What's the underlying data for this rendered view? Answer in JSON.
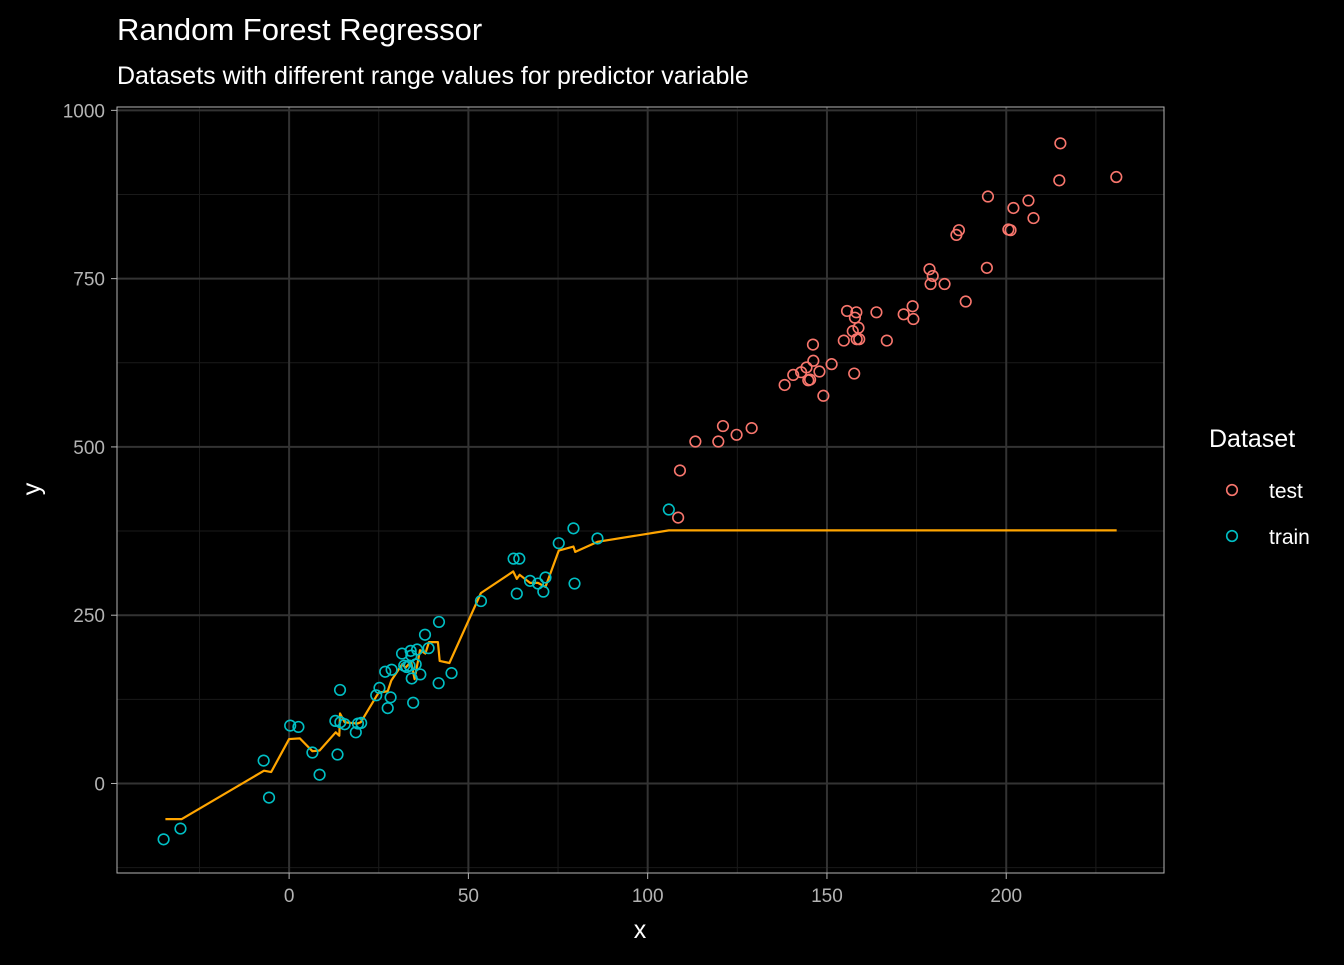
{
  "chart_data": {
    "type": "scatter",
    "title": "Random Forest Regressor",
    "subtitle": "Datasets with different range values for predictor variable",
    "xlabel": "x",
    "ylabel": "y",
    "xlim": [
      -48,
      244
    ],
    "ylim": [
      -133,
      1005
    ],
    "x_ticks": [
      0,
      50,
      100,
      150,
      200
    ],
    "y_ticks": [
      0,
      250,
      500,
      750,
      1000
    ],
    "x_minor_ticks": [
      -25,
      25,
      75,
      125,
      175,
      225
    ],
    "y_minor_ticks": [
      -125,
      125,
      375,
      625,
      875
    ],
    "grid": true,
    "legend_title": "Dataset",
    "legend_position": "right",
    "colors": {
      "test": "#F8766D",
      "train": "#00BFC4",
      "prediction": "#FFA500",
      "background": "#000000",
      "grid_major": "#333333",
      "grid_minor": "#1a1a1a",
      "axis_text": "#b3b3b3",
      "text": "#ffffff"
    },
    "series": [
      {
        "name": "test",
        "points": [
          [
            108.5,
            395
          ],
          [
            109,
            465
          ],
          [
            113.3,
            508
          ],
          [
            119.7,
            508
          ],
          [
            121,
            531
          ],
          [
            124.8,
            518
          ],
          [
            129,
            528
          ],
          [
            138.2,
            592
          ],
          [
            140.6,
            607
          ],
          [
            142.8,
            611
          ],
          [
            144.3,
            618
          ],
          [
            144.8,
            599
          ],
          [
            145.3,
            600
          ],
          [
            146.1,
            652
          ],
          [
            146.2,
            628
          ],
          [
            147.9,
            612
          ],
          [
            149,
            576
          ],
          [
            151.3,
            623
          ],
          [
            154.7,
            658
          ],
          [
            155.6,
            702
          ],
          [
            157.2,
            672
          ],
          [
            157.6,
            609
          ],
          [
            157.8,
            692
          ],
          [
            158.2,
            700
          ],
          [
            158.3,
            660
          ],
          [
            158.8,
            677
          ],
          [
            159,
            660
          ],
          [
            163.8,
            700
          ],
          [
            166.7,
            658
          ],
          [
            171.4,
            697
          ],
          [
            173.9,
            709
          ],
          [
            174.1,
            690
          ],
          [
            178.6,
            764
          ],
          [
            178.9,
            742
          ],
          [
            179.5,
            754
          ],
          [
            182.8,
            742
          ],
          [
            186.1,
            815
          ],
          [
            186.8,
            822
          ],
          [
            188.7,
            716
          ],
          [
            194.6,
            766
          ],
          [
            194.9,
            872
          ],
          [
            200.6,
            823
          ],
          [
            201.2,
            822
          ],
          [
            202,
            855
          ],
          [
            206.2,
            866
          ],
          [
            207.6,
            840
          ],
          [
            214.8,
            896
          ],
          [
            215.1,
            951
          ],
          [
            230.7,
            901
          ]
        ]
      },
      {
        "name": "train",
        "points": [
          [
            -35,
            -83
          ],
          [
            -30.3,
            -67
          ],
          [
            -7.1,
            34
          ],
          [
            -5.6,
            -21
          ],
          [
            0.3,
            86
          ],
          [
            2.6,
            84
          ],
          [
            6.5,
            46
          ],
          [
            8.5,
            13
          ],
          [
            12.9,
            93
          ],
          [
            13.5,
            43
          ],
          [
            14.2,
            139
          ],
          [
            14.3,
            91
          ],
          [
            15.5,
            88
          ],
          [
            18.6,
            76
          ],
          [
            19.2,
            89
          ],
          [
            20.1,
            90
          ],
          [
            24.3,
            131
          ],
          [
            25.2,
            142
          ],
          [
            26.8,
            166
          ],
          [
            27.5,
            112
          ],
          [
            28.3,
            128
          ],
          [
            28.6,
            169
          ],
          [
            31.5,
            193
          ],
          [
            32.1,
            175
          ],
          [
            32.8,
            173
          ],
          [
            33.6,
            175
          ],
          [
            33.9,
            197
          ],
          [
            34.1,
            190
          ],
          [
            34.2,
            156
          ],
          [
            34.6,
            120
          ],
          [
            35.3,
            177
          ],
          [
            35.7,
            199
          ],
          [
            36.6,
            162
          ],
          [
            37.9,
            221
          ],
          [
            38.9,
            201
          ],
          [
            41.7,
            149
          ],
          [
            41.8,
            240
          ],
          [
            45.3,
            164
          ],
          [
            53.5,
            271
          ],
          [
            62.6,
            334
          ],
          [
            63.5,
            282
          ],
          [
            64.2,
            334
          ],
          [
            67.2,
            301
          ],
          [
            69.4,
            297
          ],
          [
            70.9,
            285
          ],
          [
            71.5,
            306
          ],
          [
            75.2,
            357
          ],
          [
            79.3,
            379
          ],
          [
            79.6,
            297
          ],
          [
            86,
            364
          ],
          [
            105.9,
            407
          ]
        ]
      }
    ],
    "prediction_line": [
      [
        -34.5,
        -53
      ],
      [
        -30,
        -53
      ],
      [
        -7,
        19
      ],
      [
        -5,
        17
      ],
      [
        0,
        66
      ],
      [
        3,
        67
      ],
      [
        6.5,
        48
      ],
      [
        8.5,
        49
      ],
      [
        13,
        76
      ],
      [
        14,
        71
      ],
      [
        14.2,
        104
      ],
      [
        15.5,
        91
      ],
      [
        19,
        89
      ],
      [
        20,
        91
      ],
      [
        24.5,
        131
      ],
      [
        25,
        135
      ],
      [
        27.5,
        137
      ],
      [
        28.5,
        153
      ],
      [
        31.5,
        177
      ],
      [
        32.5,
        172
      ],
      [
        34,
        181
      ],
      [
        35,
        155
      ],
      [
        36.5,
        198
      ],
      [
        38,
        193
      ],
      [
        39,
        210
      ],
      [
        41.5,
        210
      ],
      [
        42,
        182
      ],
      [
        44.7,
        179
      ],
      [
        53.5,
        283
      ],
      [
        62.5,
        315
      ],
      [
        63.5,
        304
      ],
      [
        64.3,
        310
      ],
      [
        67.2,
        298
      ],
      [
        69.4,
        298
      ],
      [
        71.5,
        292
      ],
      [
        75.2,
        346
      ],
      [
        79.3,
        352
      ],
      [
        79.8,
        344
      ],
      [
        86,
        359
      ],
      [
        105.9,
        376
      ],
      [
        230.8,
        376
      ]
    ]
  }
}
